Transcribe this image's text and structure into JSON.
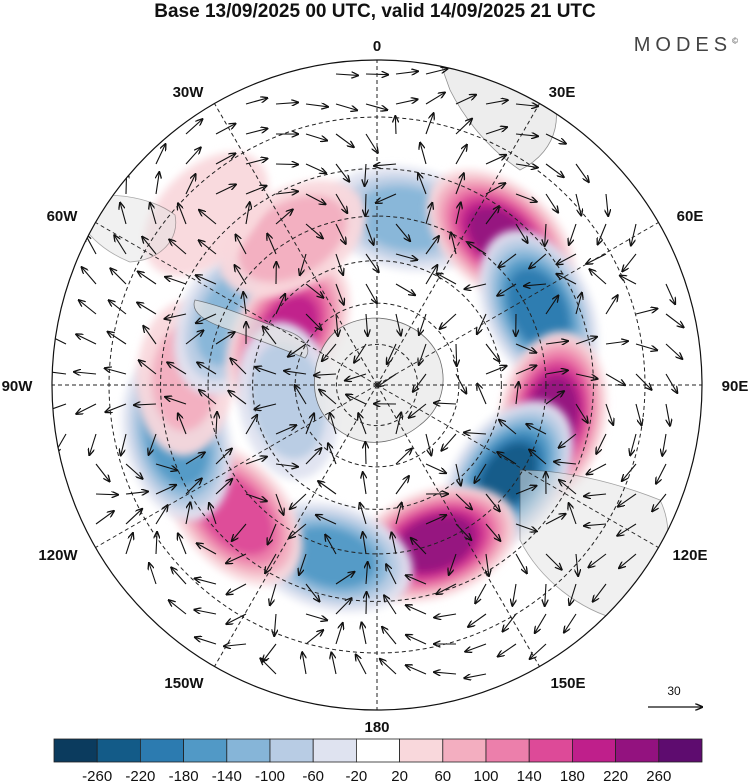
{
  "title": "Base 13/09/2025 00 UTC, valid 14/09/2025 21 UTC",
  "brand": "MODES",
  "brand_mark": "©",
  "longitude_labels": {
    "n0": "0",
    "n30e": "30E",
    "n60e": "60E",
    "n90e": "90E",
    "n120e": "120E",
    "n150e": "150E",
    "n180": "180",
    "n150w": "150W",
    "n120w": "120W",
    "n90w": "90W",
    "n60w": "60W",
    "n30w": "30W"
  },
  "reference_vector": {
    "value": "30"
  },
  "colorbar": {
    "ticks": [
      "-260",
      "-220",
      "-180",
      "-140",
      "-100",
      "-60",
      "-20",
      "20",
      "60",
      "100",
      "140",
      "180",
      "220",
      "260"
    ],
    "colors": [
      "#0b3b5e",
      "#135b88",
      "#2c7bb0",
      "#5199c6",
      "#86b5d8",
      "#b8cce4",
      "#dfe3f0",
      "#ffffff",
      "#f9d8dc",
      "#f3aec0",
      "#ec7fab",
      "#dd4a98",
      "#bf1f8b",
      "#93127f",
      "#5e0c6f"
    ]
  },
  "map_data": {
    "projection": "south polar stereographic",
    "field": "geopotential height anomaly with wind vectors",
    "anomaly_centres": [
      {
        "lon_deg": 10,
        "lat": -50,
        "value": -120
      },
      {
        "lon_deg": 40,
        "lat": -45,
        "value": 220
      },
      {
        "lon_deg": 65,
        "lat": -48,
        "value": -200
      },
      {
        "lon_deg": 100,
        "lat": -48,
        "value": 230
      },
      {
        "lon_deg": 125,
        "lat": -52,
        "value": -220
      },
      {
        "lon_deg": 160,
        "lat": -50,
        "value": 240
      },
      {
        "lon_deg": 195,
        "lat": -48,
        "value": -160
      },
      {
        "lon_deg": 228,
        "lat": -45,
        "value": 170
      },
      {
        "lon_deg": 255,
        "lat": -42,
        "value": -170
      },
      {
        "lon_deg": 272,
        "lat": -45,
        "value": 60
      },
      {
        "lon_deg": 295,
        "lat": -52,
        "value": -120
      },
      {
        "lon_deg": 300,
        "lat": -65,
        "value": 190
      },
      {
        "lon_deg": 330,
        "lat": -50,
        "value": 80
      },
      {
        "lon_deg": 260,
        "lat": -68,
        "value": -80
      },
      {
        "lon_deg": 315,
        "lat": -35,
        "value": 40
      }
    ]
  }
}
